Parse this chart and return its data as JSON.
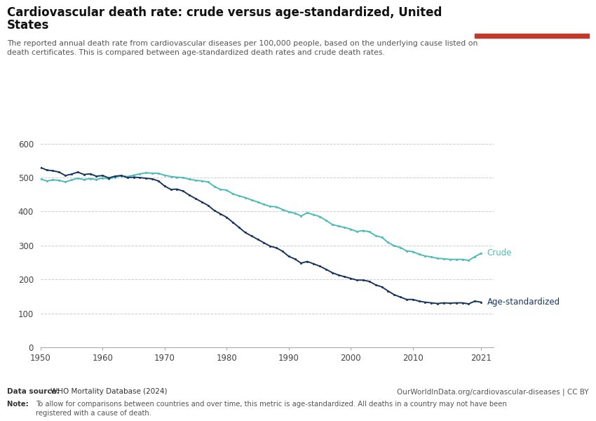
{
  "title_line1": "Cardiovascular death rate: crude versus age-standardized, United",
  "title_line2": "States",
  "subtitle": "The reported annual death rate from cardiovascular diseases per 100,000 people, based on the underlying cause listed on\ndeath certificates. This is compared between age-standardized death rates and crude death rates.",
  "datasource_bold": "Data source: ",
  "datasource_rest": "WHO Mortality Database (2024)",
  "url": "OurWorldInData.org/cardiovascular-diseases | CC BY",
  "note_bold": "Note: ",
  "note_rest": "To allow for comparisons between countries and over time, this metric is age-standardized. All deaths in a country may not have been\nregistered with a cause of death.",
  "crude_color": "#4dbcb8",
  "age_std_color": "#1a3660",
  "background_color": "#ffffff",
  "grid_color": "#cccccc",
  "ylim": [
    0,
    620
  ],
  "yticks": [
    0,
    100,
    200,
    300,
    400,
    500,
    600
  ],
  "xlabel_years": [
    1950,
    1960,
    1970,
    1980,
    1990,
    2000,
    2010,
    2021
  ],
  "crude_years": [
    1950,
    1951,
    1952,
    1953,
    1954,
    1955,
    1956,
    1957,
    1958,
    1959,
    1960,
    1961,
    1962,
    1963,
    1964,
    1965,
    1966,
    1967,
    1968,
    1969,
    1970,
    1971,
    1972,
    1973,
    1974,
    1975,
    1976,
    1977,
    1978,
    1979,
    1980,
    1981,
    1982,
    1983,
    1984,
    1985,
    1986,
    1987,
    1988,
    1989,
    1990,
    1991,
    1992,
    1993,
    1994,
    1995,
    1996,
    1997,
    1998,
    1999,
    2000,
    2001,
    2002,
    2003,
    2004,
    2005,
    2006,
    2007,
    2008,
    2009,
    2010,
    2011,
    2012,
    2013,
    2014,
    2015,
    2016,
    2017,
    2018,
    2019,
    2020,
    2021
  ],
  "crude_values": [
    496,
    490,
    493,
    492,
    487,
    493,
    498,
    494,
    497,
    494,
    499,
    496,
    501,
    505,
    503,
    507,
    511,
    514,
    513,
    512,
    507,
    503,
    501,
    500,
    495,
    492,
    490,
    487,
    474,
    465,
    463,
    452,
    446,
    441,
    434,
    428,
    421,
    415,
    414,
    406,
    399,
    395,
    387,
    396,
    391,
    385,
    374,
    362,
    357,
    353,
    348,
    341,
    344,
    340,
    329,
    324,
    309,
    299,
    294,
    284,
    282,
    274,
    269,
    266,
    262,
    261,
    259,
    259,
    259,
    256,
    267,
    277
  ],
  "age_std_years": [
    1950,
    1951,
    1952,
    1953,
    1954,
    1955,
    1956,
    1957,
    1958,
    1959,
    1960,
    1961,
    1962,
    1963,
    1964,
    1965,
    1966,
    1967,
    1968,
    1969,
    1970,
    1971,
    1972,
    1973,
    1974,
    1975,
    1976,
    1977,
    1978,
    1979,
    1980,
    1981,
    1982,
    1983,
    1984,
    1985,
    1986,
    1987,
    1988,
    1989,
    1990,
    1991,
    1992,
    1993,
    1994,
    1995,
    1996,
    1997,
    1998,
    1999,
    2000,
    2001,
    2002,
    2003,
    2004,
    2005,
    2006,
    2007,
    2008,
    2009,
    2010,
    2011,
    2012,
    2013,
    2014,
    2015,
    2016,
    2017,
    2018,
    2019,
    2020,
    2021
  ],
  "age_std_values": [
    530,
    522,
    520,
    516,
    506,
    510,
    516,
    509,
    511,
    504,
    506,
    499,
    504,
    506,
    500,
    501,
    500,
    498,
    496,
    490,
    475,
    465,
    466,
    460,
    448,
    438,
    428,
    418,
    403,
    393,
    383,
    368,
    353,
    338,
    328,
    318,
    308,
    298,
    293,
    283,
    268,
    260,
    248,
    253,
    246,
    239,
    230,
    220,
    213,
    208,
    203,
    198,
    198,
    194,
    184,
    178,
    166,
    155,
    148,
    141,
    141,
    136,
    133,
    131,
    129,
    131,
    130,
    131,
    131,
    128,
    136,
    133
  ]
}
